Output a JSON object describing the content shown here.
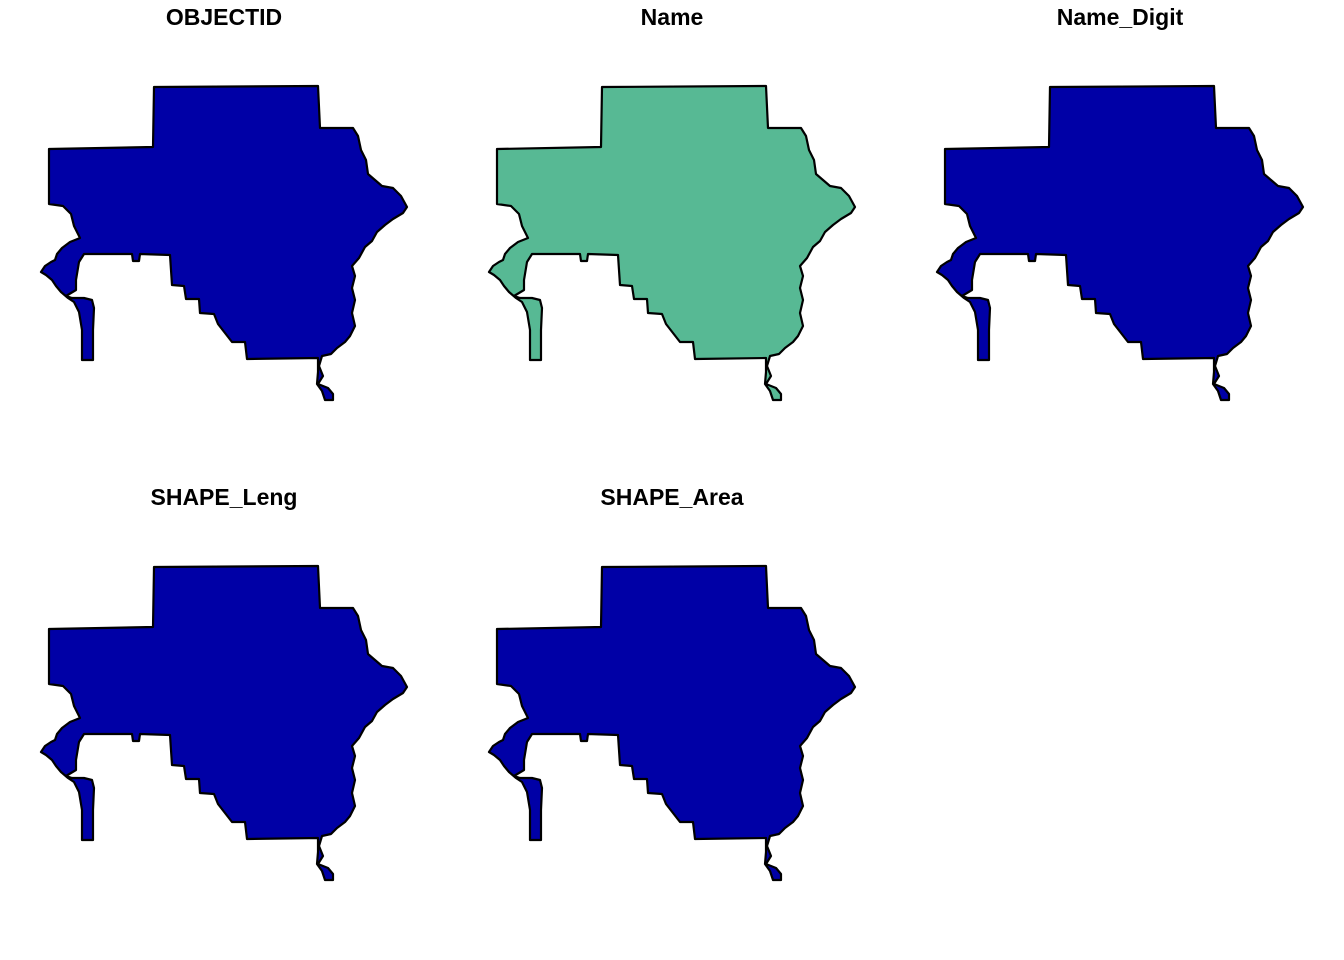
{
  "figure": {
    "background": "#ffffff",
    "outline_color": "#000000"
  },
  "panels": [
    {
      "title": "OBJECTID",
      "fill": "#0000a6"
    },
    {
      "title": "Name",
      "fill": "#57b994"
    },
    {
      "title": "Name_Digit",
      "fill": "#0000a6"
    },
    {
      "title": "SHAPE_Leng",
      "fill": "#0000a6"
    },
    {
      "title": "SHAPE_Area",
      "fill": "#0000a6"
    }
  ]
}
